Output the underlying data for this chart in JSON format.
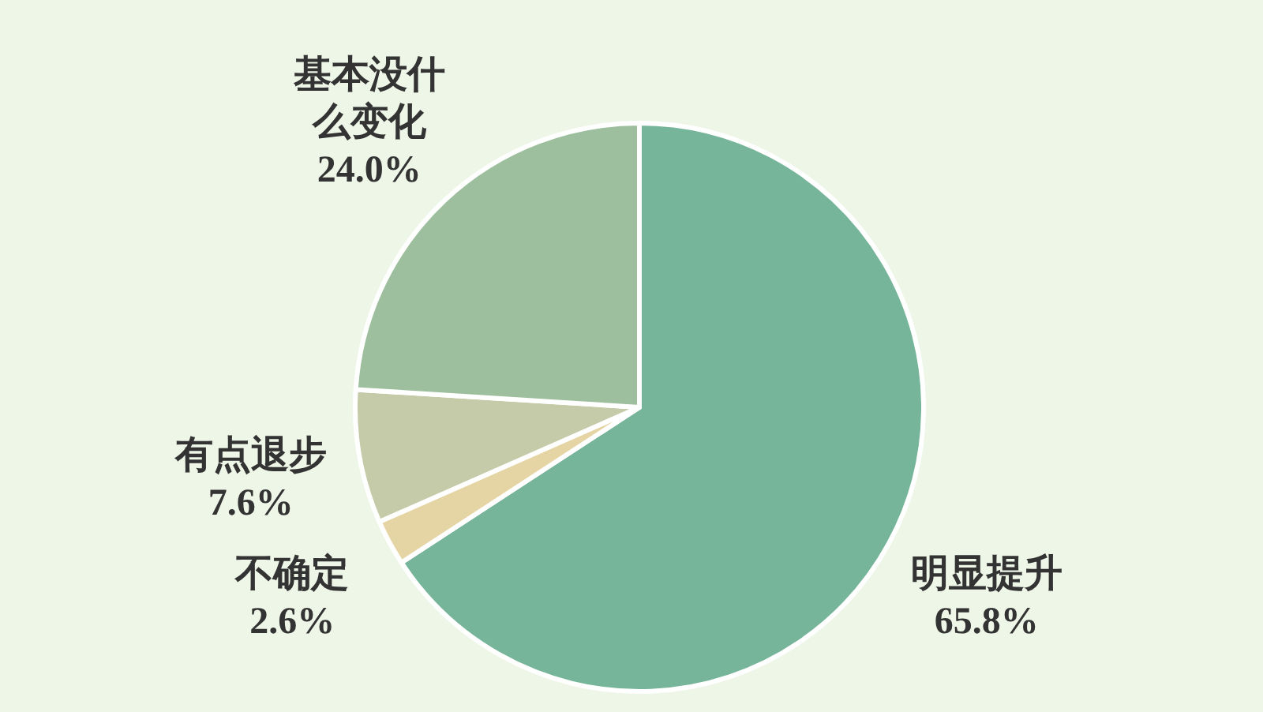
{
  "chart_data": {
    "type": "pie",
    "categories": [
      "明显提升",
      "不确定",
      "有点退步",
      "基本没什么变化"
    ],
    "values": [
      65.8,
      2.6,
      7.6,
      24.0
    ],
    "colors": [
      "#76b59a",
      "#e6d5a4",
      "#c5cba8",
      "#9dbf9d"
    ],
    "value_labels": [
      "65.8%",
      "2.6%",
      "7.6%",
      "24.0%"
    ]
  }
}
